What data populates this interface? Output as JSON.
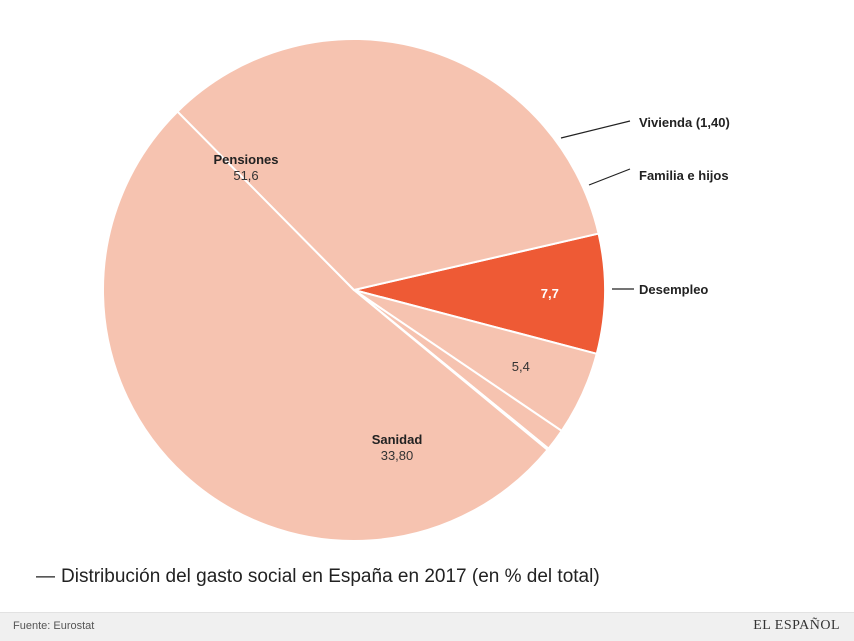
{
  "chart_data": {
    "type": "pie",
    "title": "Distribución del gasto social en España en 2017 (en % del total)",
    "slices": [
      {
        "key": "desempleo",
        "label": "Desempleo",
        "value": 7.7,
        "value_label": "7,7",
        "color": "#ee5a35",
        "highlight": true
      },
      {
        "key": "familia",
        "label": "Familia e hijos",
        "value": 5.4,
        "value_label": "5,4",
        "color": "#f6c3b0"
      },
      {
        "key": "vivienda",
        "label": "Vivienda (1,40)",
        "value": 1.4,
        "value_label": "",
        "color": "#f6c3b0"
      },
      {
        "key": "otros",
        "label": "",
        "value": 0.1,
        "value_label": "",
        "color": "#f6c3b0"
      },
      {
        "key": "pensiones",
        "label": "Pensiones",
        "value": 51.6,
        "value_label": "51,6",
        "color": "#f6c3b0"
      },
      {
        "key": "sanidad",
        "label": "Sanidad",
        "value": 33.8,
        "value_label": "33,80",
        "color": "#f6c3b0"
      }
    ]
  },
  "footer": {
    "source": "Fuente: Eurostat",
    "brand": "EL ESPAÑOL"
  }
}
